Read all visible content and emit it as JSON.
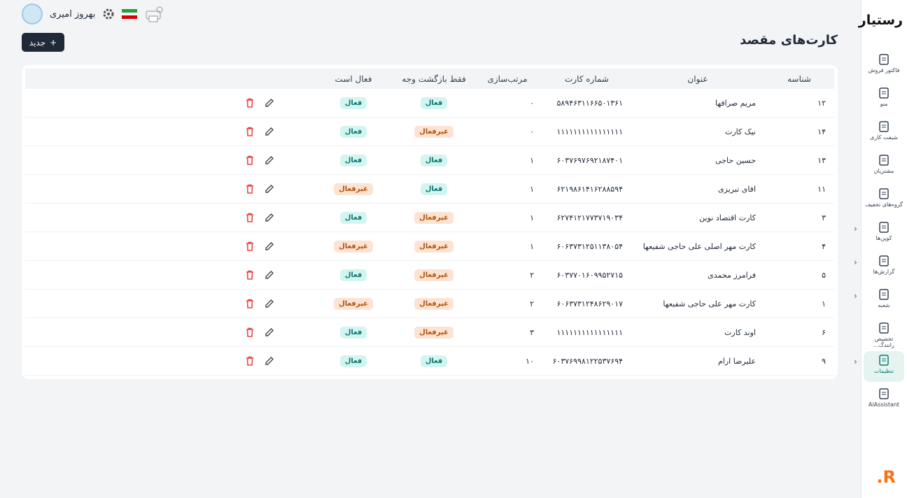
{
  "sidebar": {
    "logo": "رستیار",
    "items": [
      "فاکتور فروش",
      "منو",
      "شیفت کاری",
      "مشتریان",
      "گروه‌های تخفیف",
      "کوپن‌ها",
      "گزارش‌ها",
      "شعبه",
      "تخصیص رانندگ...",
      "تنظیمات",
      "AiAssistant"
    ],
    "brand": "R."
  },
  "header": {
    "user": "بهروز امیری"
  },
  "page": {
    "title": "کارت‌های مقصد",
    "new_button": "جدید"
  },
  "table": {
    "columns": [
      "شناسه",
      "عنوان",
      "شماره کارت",
      "مرتب‌سازی",
      "فقط بازگشت وجه",
      "فعال است"
    ],
    "rows": [
      [
        "۱۲",
        "مریم صرافها",
        "۵۸۹۴۶۳۱۱۶۶۵۰۱۳۶۱",
        "۰",
        {
          "text": "فعال",
          "background": "#d3f5f1",
          "color": "#0f766e"
        },
        {
          "text": "فعال",
          "background": "#d3f5f1",
          "color": "#0f766e"
        }
      ],
      [
        "۱۴",
        "نیک کارت",
        "۱۱۱۱۱۱۱۱۱۱۱۱۱۱۱۱",
        "۰",
        {
          "text": "غیرفعال",
          "background": "#fde3d3",
          "color": "#b45309"
        },
        {
          "text": "فعال",
          "background": "#d3f5f1",
          "color": "#0f766e"
        }
      ],
      [
        "۱۳",
        "حسین حاجی",
        "۶۰۳۷۶۹۷۶۹۲۱۸۷۴۰۱",
        "۱",
        {
          "text": "فعال",
          "background": "#d3f5f1",
          "color": "#0f766e"
        },
        {
          "text": "فعال",
          "background": "#d3f5f1",
          "color": "#0f766e"
        }
      ],
      [
        "۱۱",
        "اقای تبریزی",
        "۶۲۱۹۸۶۱۴۱۶۲۸۸۵۹۴",
        "۱",
        {
          "text": "فعال",
          "background": "#d3f5f1",
          "color": "#0f766e"
        },
        {
          "text": "غیرفعال",
          "background": "#fde3d3",
          "color": "#b45309"
        }
      ],
      [
        "۳",
        "کارت اقتصاد نوین",
        "۶۲۷۴۱۲۱۷۷۳۷۱۹۰۳۴",
        "۱",
        {
          "text": "غیرفعال",
          "background": "#fde3d3",
          "color": "#b45309"
        },
        {
          "text": "فعال",
          "background": "#d3f5f1",
          "color": "#0f766e"
        }
      ],
      [
        "۴",
        "کارت مهر اصلی علی حاجی شفیعها",
        "۶۰۶۳۷۳۱۲۵۱۱۳۸۰۵۴",
        "۱",
        {
          "text": "غیرفعال",
          "background": "#fde3d3",
          "color": "#b45309"
        },
        {
          "text": "غیرفعال",
          "background": "#fde3d3",
          "color": "#b45309"
        }
      ],
      [
        "۵",
        "فرامرز محمدی",
        "۶۰۳۷۷۰۱۶۰۹۹۵۲۷۱۵",
        "۲",
        {
          "text": "غیرفعال",
          "background": "#fde3d3",
          "color": "#b45309"
        },
        {
          "text": "فعال",
          "background": "#d3f5f1",
          "color": "#0f766e"
        }
      ],
      [
        "۱",
        "کارت مهر علی حاجی شفیعها",
        "۶۰۶۳۷۳۱۲۴۸۶۲۹۰۱۷",
        "۲",
        {
          "text": "غیرفعال",
          "background": "#fde3d3",
          "color": "#b45309"
        },
        {
          "text": "غیرفعال",
          "background": "#fde3d3",
          "color": "#b45309"
        }
      ],
      [
        "۶",
        "اوند کارت",
        "۱۱۱۱۱۱۱۱۱۱۱۱۱۱۱۱",
        "۳",
        {
          "text": "غیرفعال",
          "background": "#fde3d3",
          "color": "#b45309"
        },
        {
          "text": "فعال",
          "background": "#d3f5f1",
          "color": "#0f766e"
        }
      ],
      [
        "۹",
        "علیرضا ارام",
        "۶۰۳۷۶۹۹۸۱۲۲۵۳۷۶۹۴",
        "۱۰",
        {
          "text": "فعال",
          "background": "#d3f5f1",
          "color": "#0f766e"
        },
        {
          "text": "فعال",
          "background": "#d3f5f1",
          "color": "#0f766e"
        }
      ]
    ]
  }
}
